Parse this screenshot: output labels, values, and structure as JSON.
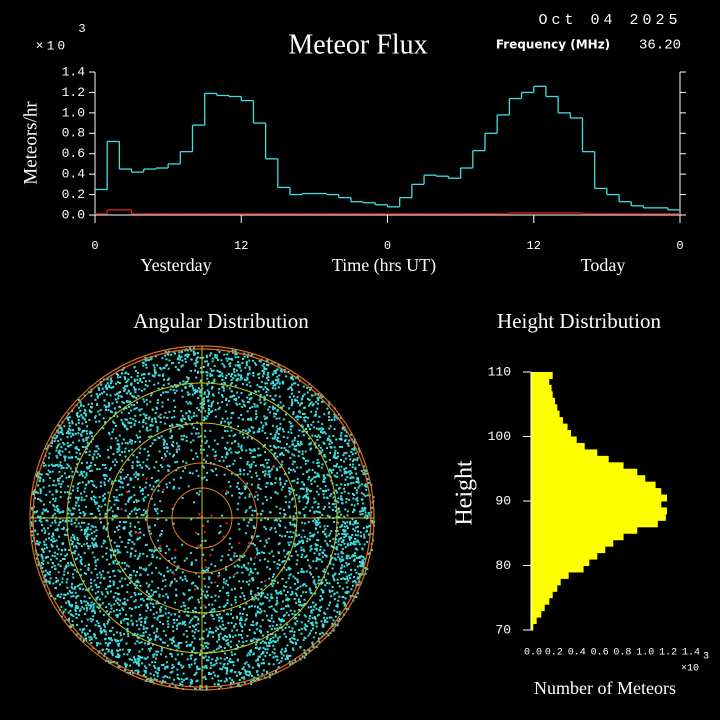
{
  "chart_data": [
    {
      "type": "line",
      "title": "Meteor Flux",
      "date": "Oct 04 2025",
      "frequency_label": "Frequency (MHz)",
      "frequency": "36.20",
      "y_label": "Meteors/hr",
      "y_multiplier": "×10",
      "y_multiplier_exp": "3",
      "x_label": "Time (hrs UT)",
      "x_left_label": "Yesterday",
      "x_right_label": "Today",
      "step": true,
      "x": [
        0,
        1,
        2,
        3,
        4,
        5,
        6,
        7,
        8,
        9,
        10,
        11,
        12,
        13,
        14,
        15,
        16,
        17,
        18,
        19,
        20,
        21,
        22,
        23,
        24,
        25,
        26,
        27,
        28,
        29,
        30,
        31,
        32,
        33,
        34,
        35,
        36,
        37,
        38,
        39,
        40,
        41,
        42,
        43,
        44,
        45,
        46,
        47
      ],
      "series": [
        {
          "color": "#40e0e0",
          "values": [
            0.25,
            0.72,
            0.45,
            0.42,
            0.45,
            0.46,
            0.5,
            0.62,
            0.88,
            1.19,
            1.17,
            1.16,
            1.12,
            0.9,
            0.55,
            0.27,
            0.2,
            0.21,
            0.21,
            0.2,
            0.17,
            0.13,
            0.12,
            0.1,
            0.08,
            0.17,
            0.3,
            0.39,
            0.38,
            0.36,
            0.46,
            0.63,
            0.8,
            0.98,
            1.14,
            1.2,
            1.26,
            1.16,
            1.0,
            0.95,
            0.62,
            0.26,
            0.2,
            0.13,
            0.09,
            0.07,
            0.07,
            0.05
          ]
        },
        {
          "color": "#e02020",
          "values": [
            0.01,
            0.05,
            0.05,
            0.01,
            0.01,
            0.01,
            0.01,
            0.01,
            0.01,
            0.01,
            0.01,
            0.01,
            0.01,
            0.01,
            0.01,
            0.01,
            0.01,
            0.01,
            0.01,
            0.01,
            0.01,
            0.01,
            0.01,
            0.01,
            0.01,
            0.01,
            0.01,
            0.01,
            0.01,
            0.01,
            0.01,
            0.01,
            0.01,
            0.01,
            0.02,
            0.02,
            0.02,
            0.02,
            0.02,
            0.02,
            0.01,
            0.01,
            0.01,
            0.01,
            0.01,
            0.01,
            0.01,
            0.01
          ]
        }
      ],
      "xlim": [
        0,
        48
      ],
      "xticks": [
        0,
        12,
        {
          "value": 24,
          "label": "0"
        },
        {
          "value": 36,
          "label": "12"
        },
        {
          "value": 48,
          "label": "0"
        }
      ],
      "ylim": [
        0,
        1.4
      ],
      "yticks": [
        {
          "value": 0,
          "label": "0.0"
        },
        0.2,
        0.4,
        0.6,
        0.8,
        {
          "value": 1,
          "label": "1.0"
        },
        1.2,
        1.4
      ]
    },
    {
      "type": "polar-scatter",
      "title": "Angular Distribution"
    },
    {
      "type": "histogram",
      "orientation": "horizontal",
      "title": "Height Distribution",
      "y_label": "Height",
      "x_label": "Number of Meteors",
      "x_multiplier": "×10",
      "x_multiplier_exp": "3",
      "color": "#ffff00",
      "bins": [
        70,
        71,
        72,
        73,
        74,
        75,
        76,
        77,
        78,
        79,
        80,
        81,
        82,
        83,
        84,
        85,
        86,
        87,
        88,
        89,
        90,
        91,
        92,
        93,
        94,
        95,
        96,
        97,
        98,
        99,
        100,
        101,
        102,
        103,
        104,
        105,
        106,
        107,
        108,
        109,
        110
      ],
      "values": [
        0.02,
        0.05,
        0.09,
        0.12,
        0.16,
        0.19,
        0.23,
        0.26,
        0.33,
        0.46,
        0.51,
        0.58,
        0.65,
        0.72,
        0.81,
        0.93,
        1.11,
        1.18,
        1.19,
        1.14,
        1.19,
        1.14,
        1.09,
        1.0,
        0.93,
        0.81,
        0.68,
        0.58,
        0.47,
        0.4,
        0.35,
        0.32,
        0.28,
        0.25,
        0.23,
        0.21,
        0.19,
        0.18,
        0.16,
        0.19
      ],
      "xlim": [
        0,
        1.4
      ],
      "xticks": [
        {
          "value": 0,
          "label": "0.0"
        },
        0.2,
        0.4,
        0.6,
        0.8,
        {
          "value": 1,
          "label": "1.0"
        },
        1.2,
        1.4
      ],
      "ylim": [
        70,
        110
      ],
      "yticks": [
        70,
        80,
        90,
        100,
        110
      ]
    }
  ]
}
